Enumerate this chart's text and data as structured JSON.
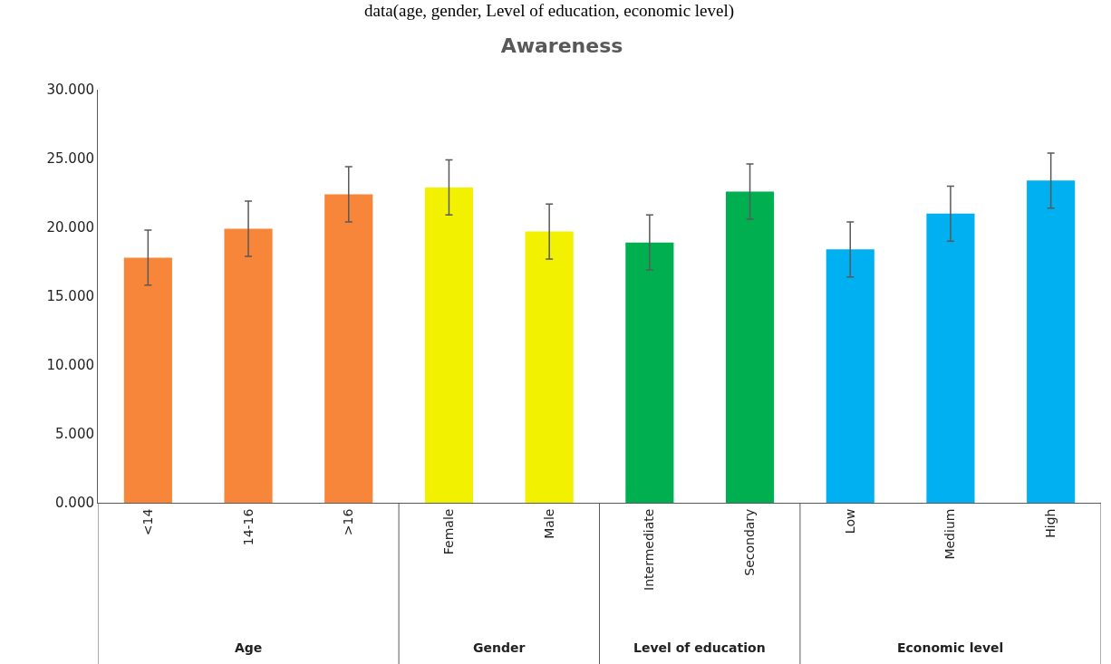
{
  "chart_data": {
    "type": "bar",
    "title": "Awareness",
    "categories": [
      "<14",
      "14-16",
      ">16",
      "Female",
      "Male",
      "Intermediate",
      "Secondary",
      "Low",
      "Medium",
      "High"
    ],
    "values": [
      17.8,
      19.9,
      22.4,
      22.9,
      19.7,
      18.9,
      22.6,
      18.4,
      21.0,
      23.4
    ],
    "errors": [
      2.0,
      2.0,
      2.0,
      2.0,
      2.0,
      2.0,
      2.0,
      2.0,
      2.0,
      2.0
    ],
    "colors": [
      "#f7853a",
      "#f7853a",
      "#f7853a",
      "#f2f200",
      "#f2f200",
      "#00b050",
      "#00b050",
      "#00b0f0",
      "#00b0f0",
      "#00b0f0"
    ],
    "ylim": [
      0,
      30
    ],
    "yticks": [
      {
        "value": 0,
        "label": "0.000"
      },
      {
        "value": 5,
        "label": "5.000"
      },
      {
        "value": 10,
        "label": "10.000"
      },
      {
        "value": 15,
        "label": "15.000"
      },
      {
        "value": 20,
        "label": "20.000"
      },
      {
        "value": 25,
        "label": "25.000"
      },
      {
        "value": 30,
        "label": "30.000"
      }
    ],
    "annotations": [
      "data(age, gender, Level of education, economic level)",
      "Age",
      "Gender",
      "Level of education",
      "Economic level"
    ]
  }
}
